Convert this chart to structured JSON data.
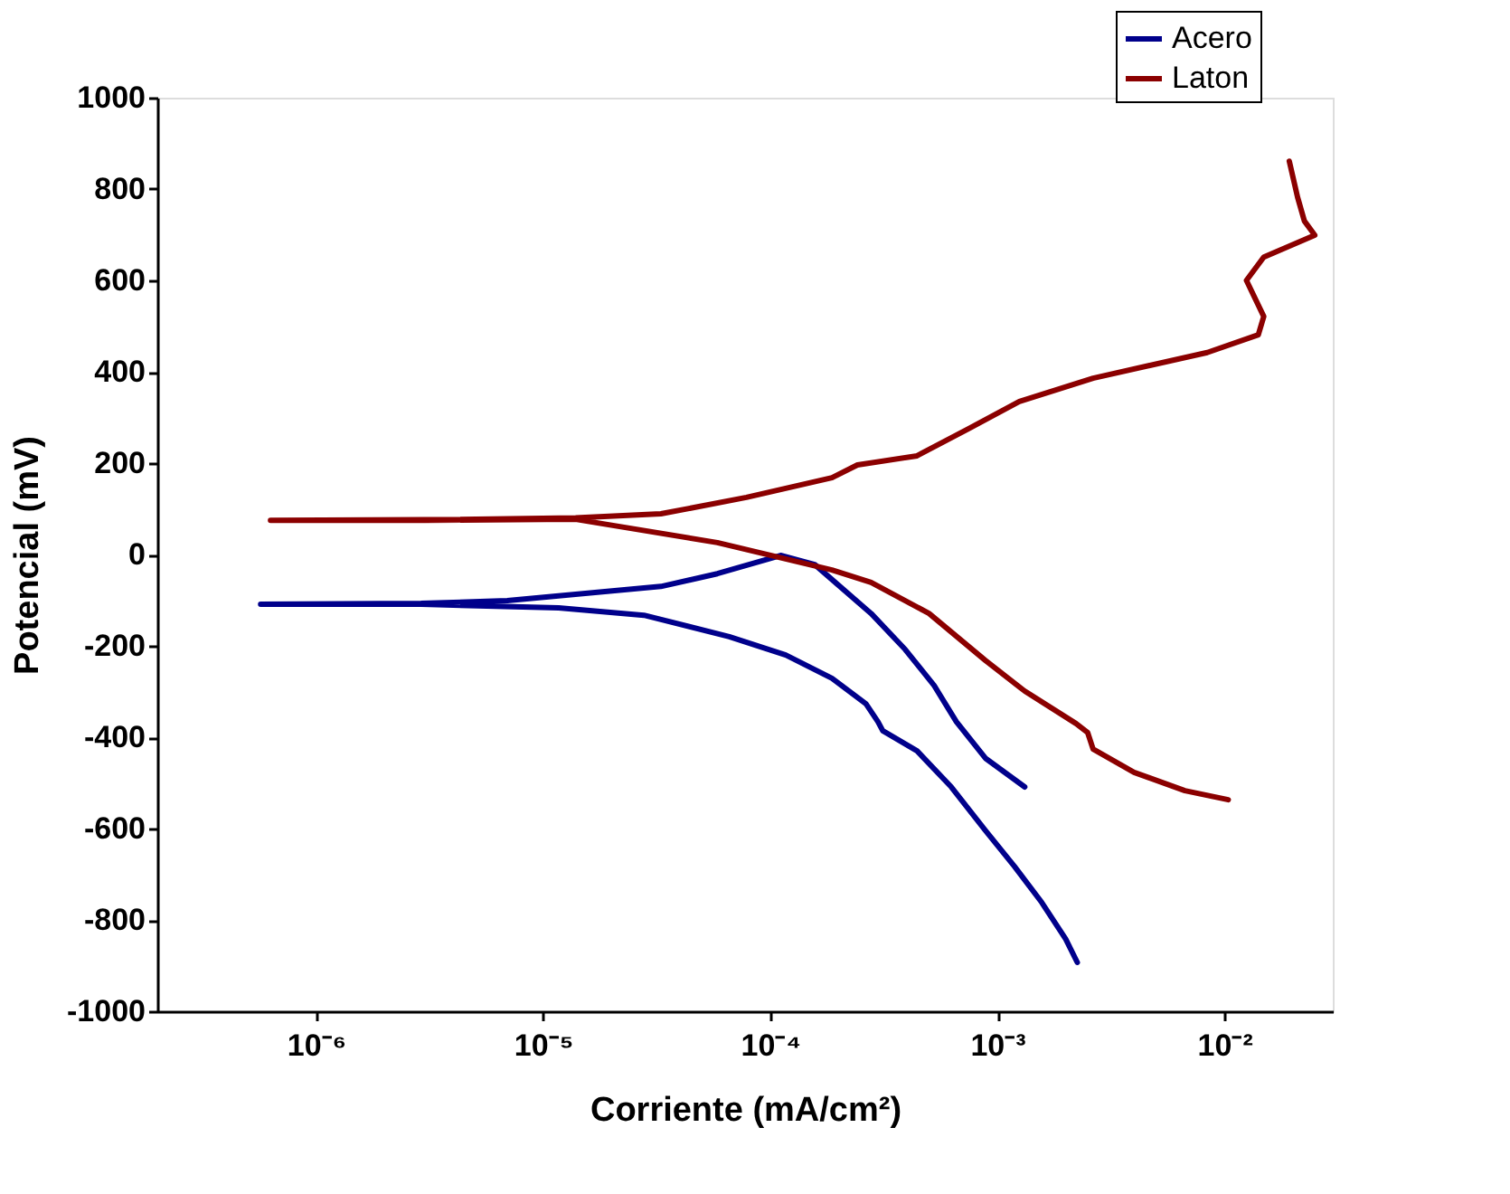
{
  "chart_data": {
    "type": "line",
    "xlabel": "Corriente (mA/cm²)",
    "ylabel": "Potencial (mV)",
    "log": "x",
    "grid": false,
    "legend": "top right",
    "line_style": "solid",
    "marker": "none",
    "xlim": [
      2e-07,
      0.03
    ],
    "xticks": [
      {
        "value": 1e-06,
        "label": "10⁻⁶"
      },
      {
        "value": 1e-05,
        "label": "10⁻⁵"
      },
      {
        "value": 0.0001,
        "label": "10⁻⁴"
      },
      {
        "value": 0.001,
        "label": "10⁻³"
      },
      {
        "value": 0.01,
        "label": "10⁻²"
      }
    ],
    "ylim": [
      -1000,
      1000
    ],
    "yticks": [
      -1000,
      -800,
      -600,
      -400,
      -200,
      0,
      200,
      400,
      600,
      800,
      1000
    ],
    "series": [
      {
        "name": "Acero",
        "color": "#00008b",
        "x": [
          0.00225,
          0.002,
          0.00157,
          0.00119,
          0.000886,
          0.000627,
          0.000443,
          0.000313,
          0.000298,
          0.000264,
          0.000187,
          0.000117,
          6.6e-05,
          2.78e-05,
          1.17e-05,
          2.9e-06,
          5.7e-07,
          2.9e-06,
          6.95e-06,
          3.3e-05,
          5.85e-05,
          0.000111,
          0.000157,
          0.000278,
          0.000393,
          0.000527,
          0.00066,
          0.000886,
          0.00132
        ],
        "values": [
          -893,
          -842,
          -762,
          -683,
          -604,
          -509,
          -430,
          -386,
          -366,
          -327,
          -271,
          -220,
          -180,
          -133,
          -117,
          -109,
          -109,
          -107,
          -101,
          -70,
          -42,
          -2,
          -22,
          -129,
          -208,
          -287,
          -366,
          -446,
          -509
        ]
      },
      {
        "name": "Laton",
        "color": "#8b0000",
        "x": [
          0.0104,
          0.0067,
          0.004,
          0.00264,
          0.0025,
          0.00222,
          0.00132,
          0.000886,
          0.0005,
          0.000278,
          0.000187,
          5.85e-05,
          1.39e-05,
          3e-06,
          6.3e-07,
          3e-06,
          1.39e-05,
          3.3e-05,
          7.85e-05,
          0.000187,
          0.000242,
          0.000443,
          0.000745,
          0.00125,
          0.00264,
          0.0084,
          0.0141,
          0.0149,
          0.0125,
          0.0149,
          0.025,
          0.0225,
          0.021,
          0.0193
        ],
        "values": [
          -537,
          -517,
          -477,
          -426,
          -390,
          -370,
          -299,
          -232,
          -129,
          -61,
          -34,
          26,
          77,
          75,
          75,
          76,
          80,
          89,
          125,
          168,
          196,
          216,
          275,
          335,
          386,
          442,
          481,
          521,
          600,
          651,
          699,
          730,
          782,
          861
        ]
      }
    ]
  }
}
